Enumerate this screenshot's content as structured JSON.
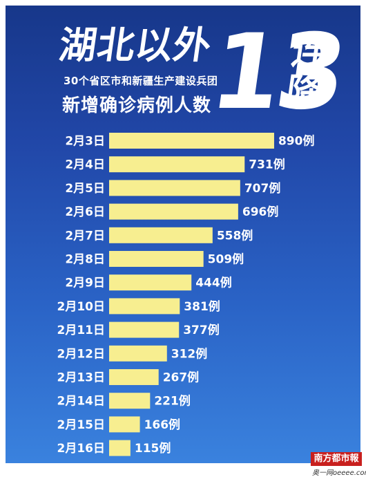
{
  "header": {
    "headline": "湖北以外",
    "big_number": "13",
    "side_text": "连降",
    "subtitle_line1": "30个省区市和新疆生产建设兵团",
    "subtitle_line2": "新增确诊病例人数"
  },
  "chart_data": {
    "type": "bar",
    "orientation": "horizontal",
    "categories": [
      "2月3日",
      "2月4日",
      "2月5日",
      "2月6日",
      "2月7日",
      "2月8日",
      "2月9日",
      "2月10日",
      "2月11日",
      "2月12日",
      "2月13日",
      "2月14日",
      "2月15日",
      "2月16日"
    ],
    "values": [
      890,
      731,
      707,
      696,
      558,
      509,
      444,
      381,
      377,
      312,
      267,
      221,
      166,
      115
    ],
    "value_labels": [
      "890例",
      "731例",
      "707例",
      "696例",
      "558例",
      "509例",
      "444例",
      "381例",
      "377例",
      "312例",
      "267例",
      "221例",
      "166例",
      "115例"
    ],
    "bar_color": "#f7ee90",
    "grid": false,
    "legend": "none"
  },
  "footer": {
    "stamp": "南方都市報",
    "site": "奥一网oeeee.com"
  }
}
